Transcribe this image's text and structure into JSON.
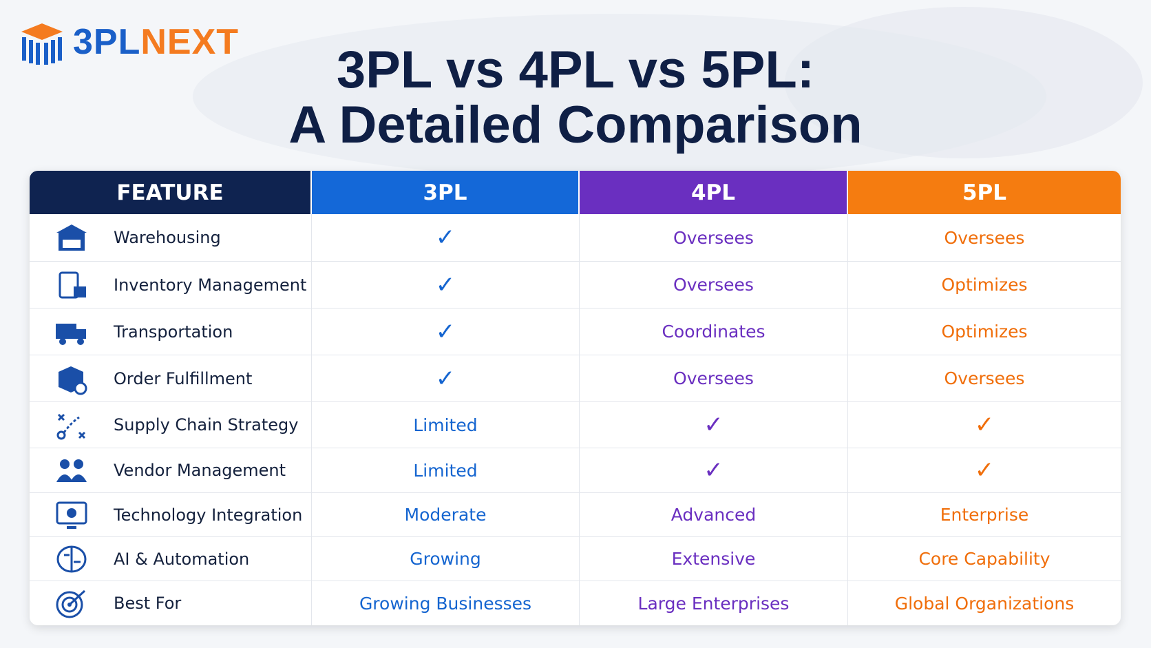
{
  "logo": {
    "part1": "3PL",
    "part2": "NEXT"
  },
  "title": [
    "3PL vs 4PL vs 5PL:",
    "A Detailed Comparison"
  ],
  "table": {
    "header": [
      "FEATURE",
      "3PL",
      "4PL",
      "5PL"
    ],
    "rows": [
      [
        "Warehousing",
        "✓",
        "Oversees",
        "Oversees"
      ],
      [
        "Inventory Management",
        "✓",
        "Oversees",
        "Optimizes"
      ],
      [
        "Transportation",
        "✓",
        "Coordinates",
        "Optimizes"
      ],
      [
        "Order Fulfillment",
        "✓",
        "Oversees",
        "Oversees"
      ],
      [
        "Supply Chain Strategy",
        "Limited",
        "✓",
        "✓"
      ],
      [
        "Vendor Management",
        "Limited",
        "✓",
        "✓"
      ],
      [
        "Technology Integration",
        "Moderate",
        "Advanced",
        "Enterprise"
      ],
      [
        "AI & Automation",
        "Growing",
        "Extensive",
        "Core Capability"
      ],
      [
        "Best For",
        "Growing Businesses",
        "Large Enterprises",
        "Global Organizations"
      ]
    ]
  }
}
